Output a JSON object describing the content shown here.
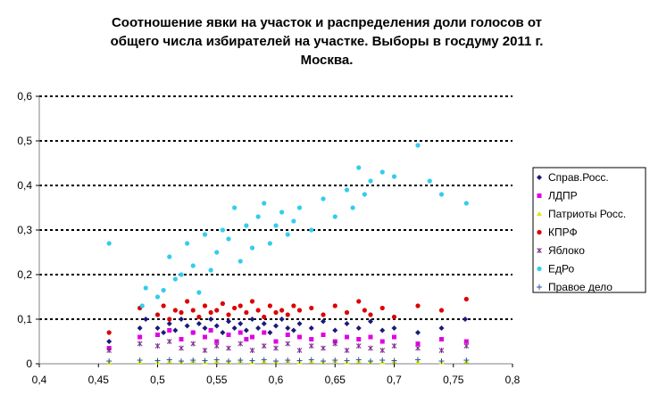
{
  "chart_data": {
    "type": "scatter",
    "title_lines": [
      "Соотношение явки на участок и распределения доли голосов от",
      "общего числа избирателей на участке. Выборы в госдуму 2011 г.",
      "Москва."
    ],
    "xlim": [
      0.4,
      0.8
    ],
    "ylim": [
      0,
      0.6
    ],
    "x_ticks": [
      "0,4",
      "0,45",
      "0,5",
      "0,55",
      "0,6",
      "0,65",
      "0,7",
      "0,75",
      "0,8"
    ],
    "y_ticks": [
      "0",
      "0,1",
      "0,2",
      "0,3",
      "0,4",
      "0,5",
      "0,6"
    ],
    "grid": "horizontal dotted major gridlines",
    "legend_position": "right",
    "series": [
      {
        "name": "Справ.Росс.",
        "color": "#1a1a7a",
        "marker": "diamond",
        "points": [
          [
            0.459,
            0.05
          ],
          [
            0.485,
            0.08
          ],
          [
            0.49,
            0.1
          ],
          [
            0.5,
            0.08
          ],
          [
            0.505,
            0.07
          ],
          [
            0.51,
            0.09
          ],
          [
            0.515,
            0.075
          ],
          [
            0.52,
            0.1
          ],
          [
            0.525,
            0.085
          ],
          [
            0.53,
            0.07
          ],
          [
            0.535,
            0.09
          ],
          [
            0.54,
            0.08
          ],
          [
            0.545,
            0.1
          ],
          [
            0.55,
            0.085
          ],
          [
            0.555,
            0.07
          ],
          [
            0.56,
            0.095
          ],
          [
            0.565,
            0.08
          ],
          [
            0.57,
            0.09
          ],
          [
            0.575,
            0.075
          ],
          [
            0.58,
            0.1
          ],
          [
            0.585,
            0.08
          ],
          [
            0.59,
            0.09
          ],
          [
            0.595,
            0.07
          ],
          [
            0.6,
            0.085
          ],
          [
            0.605,
            0.1
          ],
          [
            0.61,
            0.08
          ],
          [
            0.615,
            0.075
          ],
          [
            0.62,
            0.09
          ],
          [
            0.63,
            0.08
          ],
          [
            0.64,
            0.095
          ],
          [
            0.65,
            0.075
          ],
          [
            0.66,
            0.09
          ],
          [
            0.67,
            0.08
          ],
          [
            0.68,
            0.095
          ],
          [
            0.69,
            0.075
          ],
          [
            0.7,
            0.08
          ],
          [
            0.72,
            0.07
          ],
          [
            0.74,
            0.08
          ],
          [
            0.76,
            0.1
          ]
        ]
      },
      {
        "name": "ЛДПР",
        "color": "#e000e0",
        "marker": "square",
        "points": [
          [
            0.459,
            0.035
          ],
          [
            0.485,
            0.06
          ],
          [
            0.5,
            0.065
          ],
          [
            0.51,
            0.075
          ],
          [
            0.52,
            0.055
          ],
          [
            0.53,
            0.07
          ],
          [
            0.54,
            0.06
          ],
          [
            0.545,
            0.075
          ],
          [
            0.55,
            0.05
          ],
          [
            0.56,
            0.065
          ],
          [
            0.57,
            0.07
          ],
          [
            0.575,
            0.055
          ],
          [
            0.58,
            0.06
          ],
          [
            0.59,
            0.07
          ],
          [
            0.6,
            0.05
          ],
          [
            0.61,
            0.065
          ],
          [
            0.62,
            0.06
          ],
          [
            0.63,
            0.055
          ],
          [
            0.64,
            0.065
          ],
          [
            0.65,
            0.05
          ],
          [
            0.66,
            0.06
          ],
          [
            0.67,
            0.055
          ],
          [
            0.68,
            0.06
          ],
          [
            0.69,
            0.05
          ],
          [
            0.7,
            0.06
          ],
          [
            0.72,
            0.045
          ],
          [
            0.74,
            0.055
          ],
          [
            0.761,
            0.05
          ]
        ]
      },
      {
        "name": "Патриоты Росс.",
        "color": "#e6e600",
        "marker": "triangle",
        "points": [
          [
            0.459,
            0.002
          ],
          [
            0.485,
            0.004
          ],
          [
            0.5,
            0.003
          ],
          [
            0.51,
            0.005
          ],
          [
            0.52,
            0.004
          ],
          [
            0.53,
            0.006
          ],
          [
            0.54,
            0.003
          ],
          [
            0.55,
            0.005
          ],
          [
            0.56,
            0.004
          ],
          [
            0.57,
            0.006
          ],
          [
            0.58,
            0.003
          ],
          [
            0.59,
            0.005
          ],
          [
            0.6,
            0.004
          ],
          [
            0.61,
            0.006
          ],
          [
            0.62,
            0.003
          ],
          [
            0.63,
            0.005
          ],
          [
            0.64,
            0.004
          ],
          [
            0.65,
            0.006
          ],
          [
            0.66,
            0.003
          ],
          [
            0.67,
            0.005
          ],
          [
            0.68,
            0.004
          ],
          [
            0.69,
            0.003
          ],
          [
            0.7,
            0.005
          ],
          [
            0.72,
            0.004
          ],
          [
            0.74,
            0.003
          ],
          [
            0.761,
            0.005
          ]
        ]
      },
      {
        "name": "КПРФ",
        "color": "#dd0000",
        "marker": "circle",
        "points": [
          [
            0.459,
            0.07
          ],
          [
            0.485,
            0.125
          ],
          [
            0.5,
            0.11
          ],
          [
            0.505,
            0.13
          ],
          [
            0.51,
            0.1
          ],
          [
            0.515,
            0.12
          ],
          [
            0.52,
            0.115
          ],
          [
            0.525,
            0.14
          ],
          [
            0.53,
            0.12
          ],
          [
            0.535,
            0.105
          ],
          [
            0.54,
            0.13
          ],
          [
            0.545,
            0.115
          ],
          [
            0.55,
            0.12
          ],
          [
            0.555,
            0.135
          ],
          [
            0.56,
            0.11
          ],
          [
            0.565,
            0.125
          ],
          [
            0.57,
            0.13
          ],
          [
            0.575,
            0.115
          ],
          [
            0.58,
            0.14
          ],
          [
            0.585,
            0.12
          ],
          [
            0.59,
            0.105
          ],
          [
            0.595,
            0.13
          ],
          [
            0.6,
            0.115
          ],
          [
            0.605,
            0.12
          ],
          [
            0.61,
            0.11
          ],
          [
            0.615,
            0.13
          ],
          [
            0.62,
            0.12
          ],
          [
            0.63,
            0.125
          ],
          [
            0.64,
            0.11
          ],
          [
            0.65,
            0.13
          ],
          [
            0.66,
            0.115
          ],
          [
            0.67,
            0.14
          ],
          [
            0.675,
            0.12
          ],
          [
            0.68,
            0.11
          ],
          [
            0.69,
            0.125
          ],
          [
            0.7,
            0.105
          ],
          [
            0.72,
            0.13
          ],
          [
            0.74,
            0.12
          ],
          [
            0.761,
            0.145
          ]
        ]
      },
      {
        "name": "Яблоко",
        "color": "#7b2d8e",
        "marker": "asterisk",
        "points": [
          [
            0.459,
            0.03
          ],
          [
            0.485,
            0.045
          ],
          [
            0.5,
            0.04
          ],
          [
            0.51,
            0.05
          ],
          [
            0.52,
            0.035
          ],
          [
            0.53,
            0.045
          ],
          [
            0.54,
            0.03
          ],
          [
            0.55,
            0.04
          ],
          [
            0.56,
            0.035
          ],
          [
            0.57,
            0.045
          ],
          [
            0.58,
            0.03
          ],
          [
            0.59,
            0.04
          ],
          [
            0.6,
            0.035
          ],
          [
            0.61,
            0.045
          ],
          [
            0.62,
            0.03
          ],
          [
            0.63,
            0.04
          ],
          [
            0.64,
            0.035
          ],
          [
            0.65,
            0.045
          ],
          [
            0.66,
            0.03
          ],
          [
            0.67,
            0.04
          ],
          [
            0.68,
            0.035
          ],
          [
            0.69,
            0.03
          ],
          [
            0.7,
            0.04
          ],
          [
            0.72,
            0.035
          ],
          [
            0.74,
            0.03
          ],
          [
            0.761,
            0.04
          ]
        ]
      },
      {
        "name": "ЕдРо",
        "color": "#33ccee",
        "marker": "circle",
        "points": [
          [
            0.459,
            0.27
          ],
          [
            0.487,
            0.13
          ],
          [
            0.49,
            0.17
          ],
          [
            0.5,
            0.15
          ],
          [
            0.505,
            0.165
          ],
          [
            0.51,
            0.24
          ],
          [
            0.515,
            0.19
          ],
          [
            0.52,
            0.2
          ],
          [
            0.525,
            0.27
          ],
          [
            0.53,
            0.22
          ],
          [
            0.535,
            0.16
          ],
          [
            0.54,
            0.29
          ],
          [
            0.545,
            0.21
          ],
          [
            0.55,
            0.25
          ],
          [
            0.555,
            0.3
          ],
          [
            0.56,
            0.28
          ],
          [
            0.565,
            0.35
          ],
          [
            0.57,
            0.23
          ],
          [
            0.575,
            0.31
          ],
          [
            0.58,
            0.26
          ],
          [
            0.585,
            0.33
          ],
          [
            0.59,
            0.36
          ],
          [
            0.595,
            0.27
          ],
          [
            0.6,
            0.31
          ],
          [
            0.605,
            0.34
          ],
          [
            0.61,
            0.29
          ],
          [
            0.615,
            0.32
          ],
          [
            0.62,
            0.35
          ],
          [
            0.63,
            0.3
          ],
          [
            0.64,
            0.37
          ],
          [
            0.65,
            0.33
          ],
          [
            0.66,
            0.39
          ],
          [
            0.665,
            0.35
          ],
          [
            0.67,
            0.44
          ],
          [
            0.675,
            0.38
          ],
          [
            0.68,
            0.41
          ],
          [
            0.69,
            0.43
          ],
          [
            0.7,
            0.42
          ],
          [
            0.72,
            0.49
          ],
          [
            0.73,
            0.41
          ],
          [
            0.74,
            0.38
          ],
          [
            0.761,
            0.36
          ]
        ]
      },
      {
        "name": "Правое дело",
        "color": "#2255aa",
        "marker": "plus",
        "points": [
          [
            0.459,
            0.006
          ],
          [
            0.485,
            0.008
          ],
          [
            0.5,
            0.007
          ],
          [
            0.51,
            0.009
          ],
          [
            0.52,
            0.006
          ],
          [
            0.53,
            0.008
          ],
          [
            0.54,
            0.007
          ],
          [
            0.55,
            0.009
          ],
          [
            0.56,
            0.006
          ],
          [
            0.57,
            0.008
          ],
          [
            0.58,
            0.007
          ],
          [
            0.59,
            0.009
          ],
          [
            0.6,
            0.006
          ],
          [
            0.61,
            0.008
          ],
          [
            0.62,
            0.007
          ],
          [
            0.63,
            0.009
          ],
          [
            0.64,
            0.006
          ],
          [
            0.65,
            0.008
          ],
          [
            0.66,
            0.007
          ],
          [
            0.67,
            0.009
          ],
          [
            0.68,
            0.006
          ],
          [
            0.69,
            0.008
          ],
          [
            0.7,
            0.007
          ],
          [
            0.72,
            0.009
          ],
          [
            0.74,
            0.006
          ],
          [
            0.761,
            0.008
          ]
        ]
      }
    ]
  }
}
